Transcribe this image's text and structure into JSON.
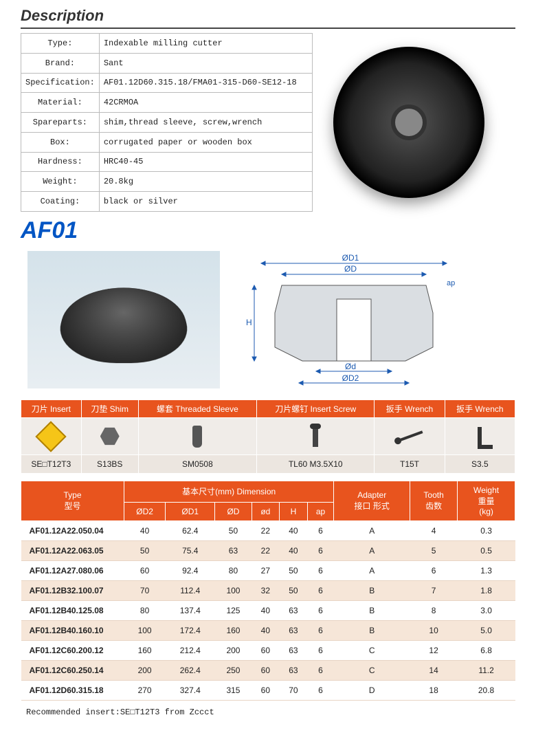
{
  "title": "Description",
  "description": {
    "rows": [
      {
        "label": "Type:",
        "value": "Indexable milling cutter"
      },
      {
        "label": "Brand:",
        "value": "Sant"
      },
      {
        "label": "Specification:",
        "value": "AF01.12D60.315.18/FMA01-315-D60-SE12-18"
      },
      {
        "label": "Material:",
        "value": "42CRMOA"
      },
      {
        "label": "Spareparts:",
        "value": "shim,thread sleeve, screw,wrench"
      },
      {
        "label": "Box:",
        "value": "corrugated paper or wooden box"
      },
      {
        "label": "Hardness:",
        "value": "HRC40-45"
      },
      {
        "label": "Weight:",
        "value": "20.8kg"
      },
      {
        "label": "Coating:",
        "value": "black or silver"
      }
    ]
  },
  "model_label": "AF01",
  "diagram_labels": {
    "D1": "ØD1",
    "D": "ØD",
    "H": "H",
    "d": "Ød",
    "D2": "ØD2",
    "ap": "ap"
  },
  "parts": {
    "columns": [
      {
        "cn": "刀片",
        "en": "Insert",
        "code": "SE□T12T3",
        "icon": "insert"
      },
      {
        "cn": "刀垫",
        "en": "Shim",
        "code": "S13BS",
        "icon": "shim"
      },
      {
        "cn": "螺套",
        "en": "Threaded Sleeve",
        "code": "SM0508",
        "icon": "sleeve"
      },
      {
        "cn": "刀片螺钉",
        "en": "Insert Screw",
        "code": "TL60 M3.5X10",
        "icon": "screw"
      },
      {
        "cn": "扳手",
        "en": "Wrench",
        "code": "T15T",
        "icon": "wrench1"
      },
      {
        "cn": "扳手",
        "en": "Wrench",
        "code": "S3.5",
        "icon": "wrench2"
      }
    ]
  },
  "dimensions": {
    "header_group": {
      "type": "Type",
      "type_cn": "型号",
      "dim": "基本尺寸(mm) Dimension",
      "adapter": "Adapter",
      "adapter_cn": "接口\n形式",
      "tooth": "Tooth",
      "tooth_cn": "齿数",
      "weight": "Weight",
      "weight_cn": "重量",
      "weight_unit": "(kg)"
    },
    "sub_headers": [
      "ØD2",
      "ØD1",
      "ØD",
      "ød",
      "H",
      "ap"
    ],
    "rows": [
      {
        "type": "AF01.12A22.050.04",
        "d2": "40",
        "d1": "62.4",
        "d": "50",
        "sd": "22",
        "h": "40",
        "ap": "6",
        "adapter": "A",
        "tooth": "4",
        "weight": "0.3"
      },
      {
        "type": "AF01.12A22.063.05",
        "d2": "50",
        "d1": "75.4",
        "d": "63",
        "sd": "22",
        "h": "40",
        "ap": "6",
        "adapter": "A",
        "tooth": "5",
        "weight": "0.5"
      },
      {
        "type": "AF01.12A27.080.06",
        "d2": "60",
        "d1": "92.4",
        "d": "80",
        "sd": "27",
        "h": "50",
        "ap": "6",
        "adapter": "A",
        "tooth": "6",
        "weight": "1.3"
      },
      {
        "type": "AF01.12B32.100.07",
        "d2": "70",
        "d1": "112.4",
        "d": "100",
        "sd": "32",
        "h": "50",
        "ap": "6",
        "adapter": "B",
        "tooth": "7",
        "weight": "1.8"
      },
      {
        "type": "AF01.12B40.125.08",
        "d2": "80",
        "d1": "137.4",
        "d": "125",
        "sd": "40",
        "h": "63",
        "ap": "6",
        "adapter": "B",
        "tooth": "8",
        "weight": "3.0"
      },
      {
        "type": "AF01.12B40.160.10",
        "d2": "100",
        "d1": "172.4",
        "d": "160",
        "sd": "40",
        "h": "63",
        "ap": "6",
        "adapter": "B",
        "tooth": "10",
        "weight": "5.0"
      },
      {
        "type": "AF01.12C60.200.12",
        "d2": "160",
        "d1": "212.4",
        "d": "200",
        "sd": "60",
        "h": "63",
        "ap": "6",
        "adapter": "C",
        "tooth": "12",
        "weight": "6.8"
      },
      {
        "type": "AF01.12C60.250.14",
        "d2": "200",
        "d1": "262.4",
        "d": "250",
        "sd": "60",
        "h": "63",
        "ap": "6",
        "adapter": "C",
        "tooth": "14",
        "weight": "11.2"
      },
      {
        "type": "AF01.12D60.315.18",
        "d2": "270",
        "d1": "327.4",
        "d": "315",
        "sd": "60",
        "h": "70",
        "ap": "6",
        "adapter": "D",
        "tooth": "18",
        "weight": "20.8"
      }
    ]
  },
  "footer": "Recommended insert:SE□T12T3 from Zccct",
  "colors": {
    "orange": "#e8541e",
    "blue": "#0055c4",
    "alt_row": "#f6e6d8"
  }
}
